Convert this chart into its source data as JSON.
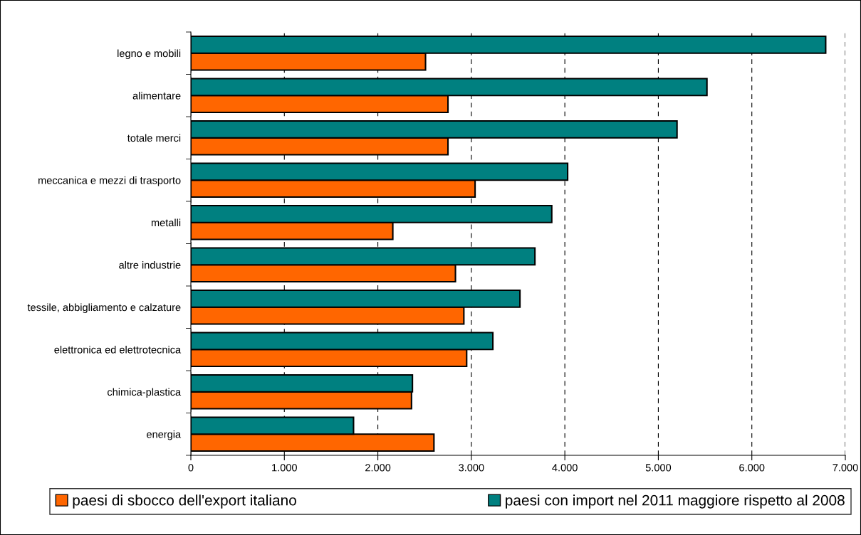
{
  "chart_data": {
    "type": "bar",
    "orientation": "horizontal",
    "categories": [
      "legno e mobili",
      "alimentare",
      "totale merci",
      "meccanica e mezzi di trasporto",
      "metalli",
      "altre industrie",
      "tessile, abbigliamento e calzature",
      "elettronica ed elettrotecnica",
      "chimica-plastica",
      "energia"
    ],
    "series": [
      {
        "name": "paesi di sbocco dell'export italiano",
        "color": "#ff6600",
        "values": [
          2510,
          2750,
          2750,
          3040,
          2160,
          2830,
          2920,
          2950,
          2360,
          2600
        ]
      },
      {
        "name": "paesi con import nel 2011 maggiore rispetto al 2008",
        "color": "#008080",
        "values": [
          6790,
          5520,
          5200,
          4030,
          3860,
          3680,
          3520,
          3230,
          2370,
          1740
        ]
      }
    ],
    "xlim": [
      0,
      7000
    ],
    "xticks": [
      {
        "value": 0,
        "label": "0"
      },
      {
        "value": 1000,
        "label": "1.000"
      },
      {
        "value": 2000,
        "label": "2.000"
      },
      {
        "value": 3000,
        "label": "3.000"
      },
      {
        "value": 4000,
        "label": "4.000"
      },
      {
        "value": 5000,
        "label": "5.000"
      },
      {
        "value": 6000,
        "label": "6.000"
      },
      {
        "value": 7000,
        "label": "7.000"
      }
    ],
    "grid": "x",
    "legend": "bottom"
  }
}
